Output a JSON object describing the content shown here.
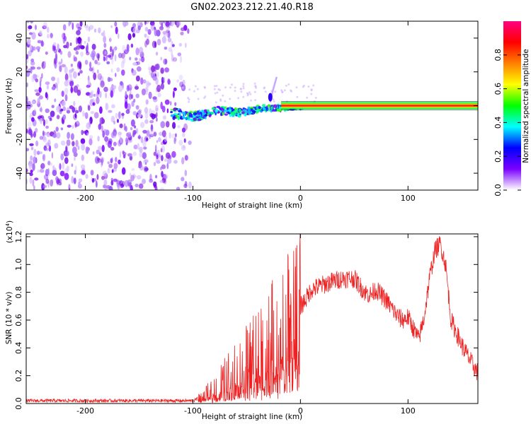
{
  "title": "GN02.2023.212.21.40.R18",
  "colors": {
    "snr_line": "#ee2222",
    "spectrogram_low": "#7a00ff",
    "carrier": "#ff3000"
  },
  "colorbar": {
    "label": "Normalized spectral amplitude",
    "ticks": [
      "0.0",
      "0.2",
      "0.4",
      "0.6",
      "0.8"
    ],
    "tick_values": [
      0.0,
      0.2,
      0.4,
      0.6,
      0.8
    ],
    "range": [
      0,
      1
    ],
    "colormap": [
      "#ffffff",
      "#7a00ff",
      "#0000ff",
      "#00ffff",
      "#00ff00",
      "#ffff00",
      "#ff8000",
      "#ff0000",
      "#ff0080"
    ]
  },
  "chart_data": [
    {
      "type": "heatmap",
      "name": "spectrogram",
      "xlabel": "Height of straight line (km)",
      "ylabel": "Frequency (Hz)",
      "xlim": [
        -255,
        165
      ],
      "ylim": [
        -50,
        50
      ],
      "xticks": [
        -200,
        -100,
        0,
        100
      ],
      "xtick_labels": [
        "-200",
        "-100",
        "0",
        "100"
      ],
      "yticks": [
        -40,
        -20,
        0,
        20,
        40
      ],
      "ytick_labels": [
        "-40",
        "-20",
        "0",
        "20",
        "40"
      ],
      "noise_region_x": [
        -255,
        -102
      ],
      "carrier_start_x": -120,
      "carrier_frequency": 0,
      "spike_x": -28,
      "spike_top_frequency": 17
    },
    {
      "type": "line",
      "name": "snr",
      "xlabel": "Height of straight line (km)",
      "ylabel": "SNR (10 * v/v)",
      "yscale_label": "(x10",
      "yscale_exponent": "4",
      "xlim": [
        -255,
        165
      ],
      "ylim": [
        0,
        1.22
      ],
      "xticks": [
        -200,
        -100,
        0,
        100
      ],
      "xtick_labels": [
        "-200",
        "-100",
        "0",
        "100"
      ],
      "yticks": [
        0.0,
        0.2,
        0.4,
        0.6,
        0.8,
        1.0,
        1.2
      ],
      "ytick_labels": [
        "0.0",
        "0.2",
        "0.4",
        "0.6",
        "0.8",
        "1.0",
        "1.2"
      ],
      "envelope": {
        "x": [
          -255,
          -100,
          -90,
          -80,
          -70,
          -60,
          -50,
          -40,
          -30,
          -20,
          -10,
          -5,
          0,
          5,
          10,
          20,
          30,
          40,
          50,
          60,
          65,
          70,
          80,
          90,
          95,
          100,
          110,
          115,
          120,
          125,
          130,
          135,
          140,
          150,
          160,
          165
        ],
        "y": [
          0.02,
          0.02,
          0.05,
          0.12,
          0.18,
          0.25,
          0.3,
          0.38,
          0.45,
          0.5,
          0.6,
          0.75,
          0.7,
          0.75,
          0.82,
          0.85,
          0.88,
          0.9,
          0.9,
          0.8,
          0.78,
          0.82,
          0.74,
          0.63,
          0.6,
          0.62,
          0.46,
          0.62,
          0.9,
          1.1,
          1.15,
          1.0,
          0.6,
          0.42,
          0.28,
          0.22
        ]
      }
    }
  ]
}
